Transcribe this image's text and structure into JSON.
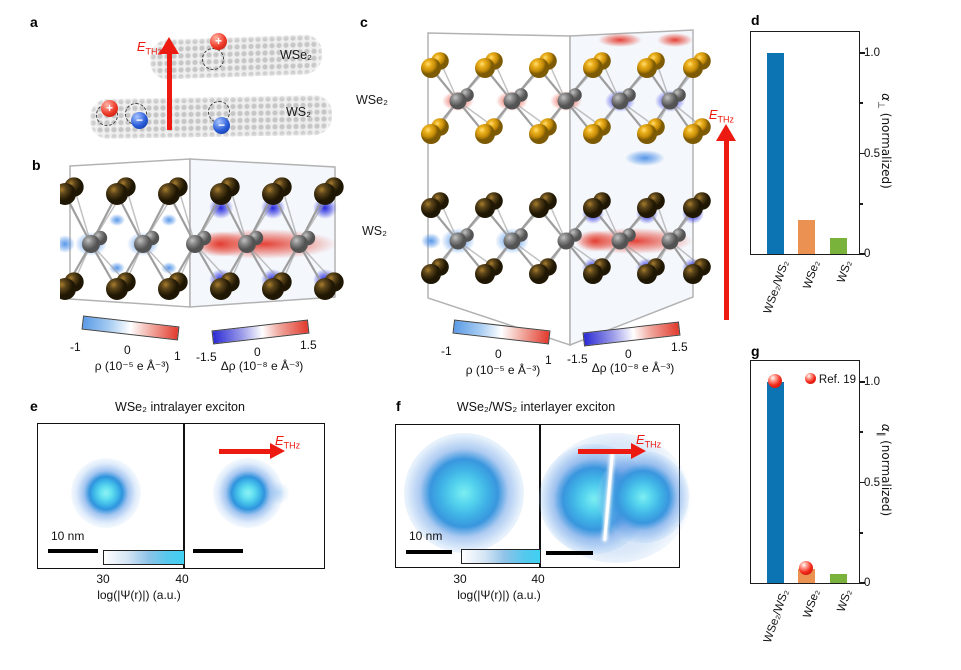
{
  "panels": {
    "a": {
      "label": "a",
      "field": {
        "symbol": "E",
        "sub": "THz"
      },
      "layer_top": "WSe₂",
      "layer_bottom": "WS₂",
      "plus": "+",
      "minus": "−"
    },
    "b": {
      "label": "b",
      "colorbar_rho": {
        "ticks": [
          "-1",
          "0",
          "1"
        ],
        "label": "ρ (10⁻⁵ e Å⁻³)"
      },
      "colorbar_drho": {
        "ticks": [
          "-1.5",
          "0",
          "1.5"
        ],
        "label": "Δρ (10⁻⁸ e Å⁻³)"
      }
    },
    "c": {
      "label": "c",
      "layer_top": "WSe₂",
      "layer_bottom": "WS₂",
      "field": {
        "symbol": "E",
        "sub": "THz"
      },
      "colorbar_rho": {
        "ticks": [
          "-1",
          "0",
          "1"
        ],
        "label": "ρ (10⁻⁵ e Å⁻³)"
      },
      "colorbar_drho": {
        "ticks": [
          "-1.5",
          "0",
          "1.5"
        ],
        "label": "Δρ (10⁻⁸ e Å⁻³)"
      }
    },
    "d": {
      "label": "d"
    },
    "e": {
      "label": "e",
      "title": "WSe₂ intralayer exciton",
      "scale": "10 nm",
      "field": {
        "symbol": "E",
        "sub": "THz"
      },
      "colorbar": {
        "ticks": [
          "30",
          "40"
        ],
        "label": "log(|Ψ(r)|) (a.u.)"
      }
    },
    "f": {
      "label": "f",
      "title": "WSe₂/WS₂ interlayer exciton",
      "scale": "10 nm",
      "field": {
        "symbol": "E",
        "sub": "THz"
      },
      "colorbar": {
        "ticks": [
          "30",
          "40"
        ],
        "label": "log(|Ψ(r)|) (a.u.)"
      }
    },
    "g": {
      "label": "g"
    }
  },
  "chart_data": [
    {
      "id": "d",
      "type": "bar",
      "categories": [
        "WSe₂/WS₂",
        "WSe₂",
        "WS₂"
      ],
      "values": [
        1.0,
        0.17,
        0.08
      ],
      "bar_colors": [
        "#0c74b2",
        "#eb9253",
        "#7ab33c"
      ],
      "title": "",
      "xlabel": "",
      "ylabel_text": "α⊥ (normalized)",
      "ylabel": {
        "symbol": "α",
        "sub": "⊥",
        "rest": " (normalized)"
      },
      "ylim": [
        0,
        1.1
      ],
      "yticks": [
        0,
        0.5,
        1.0
      ],
      "ytick_labels": [
        "0",
        "0.5",
        "1.0"
      ],
      "yticks_minor": [
        0.25,
        0.75
      ],
      "axis_side": "right",
      "grid": false
    },
    {
      "id": "g",
      "type": "bar",
      "categories": [
        "WSe₂/WS₂",
        "WSe₂",
        "WS₂"
      ],
      "values": [
        1.0,
        0.07,
        0.045
      ],
      "bar_colors": [
        "#0c74b2",
        "#eb9253",
        "#7ab33c"
      ],
      "title": "",
      "xlabel": "",
      "ylabel_text": "α∥ (normalized)",
      "ylabel": {
        "symbol": "α",
        "sub": "∥",
        "rest": " (normalized)"
      },
      "ylim": [
        0,
        1.1
      ],
      "yticks": [
        0,
        0.5,
        1.0
      ],
      "ytick_labels": [
        "0",
        "0.5",
        "1.0"
      ],
      "yticks_minor": [
        0.25,
        0.75
      ],
      "axis_side": "right",
      "grid": false,
      "legend": {
        "label": "Ref. 19",
        "position": "top-right"
      },
      "ref_markers": [
        1.0,
        0.07,
        null
      ]
    }
  ],
  "colors": {
    "accent_red": "#ec1a10",
    "bar_blue": "#0c74b2",
    "bar_orange": "#eb9253",
    "bar_green": "#7ab33c",
    "exciton_cyan": "#55d4ee"
  }
}
